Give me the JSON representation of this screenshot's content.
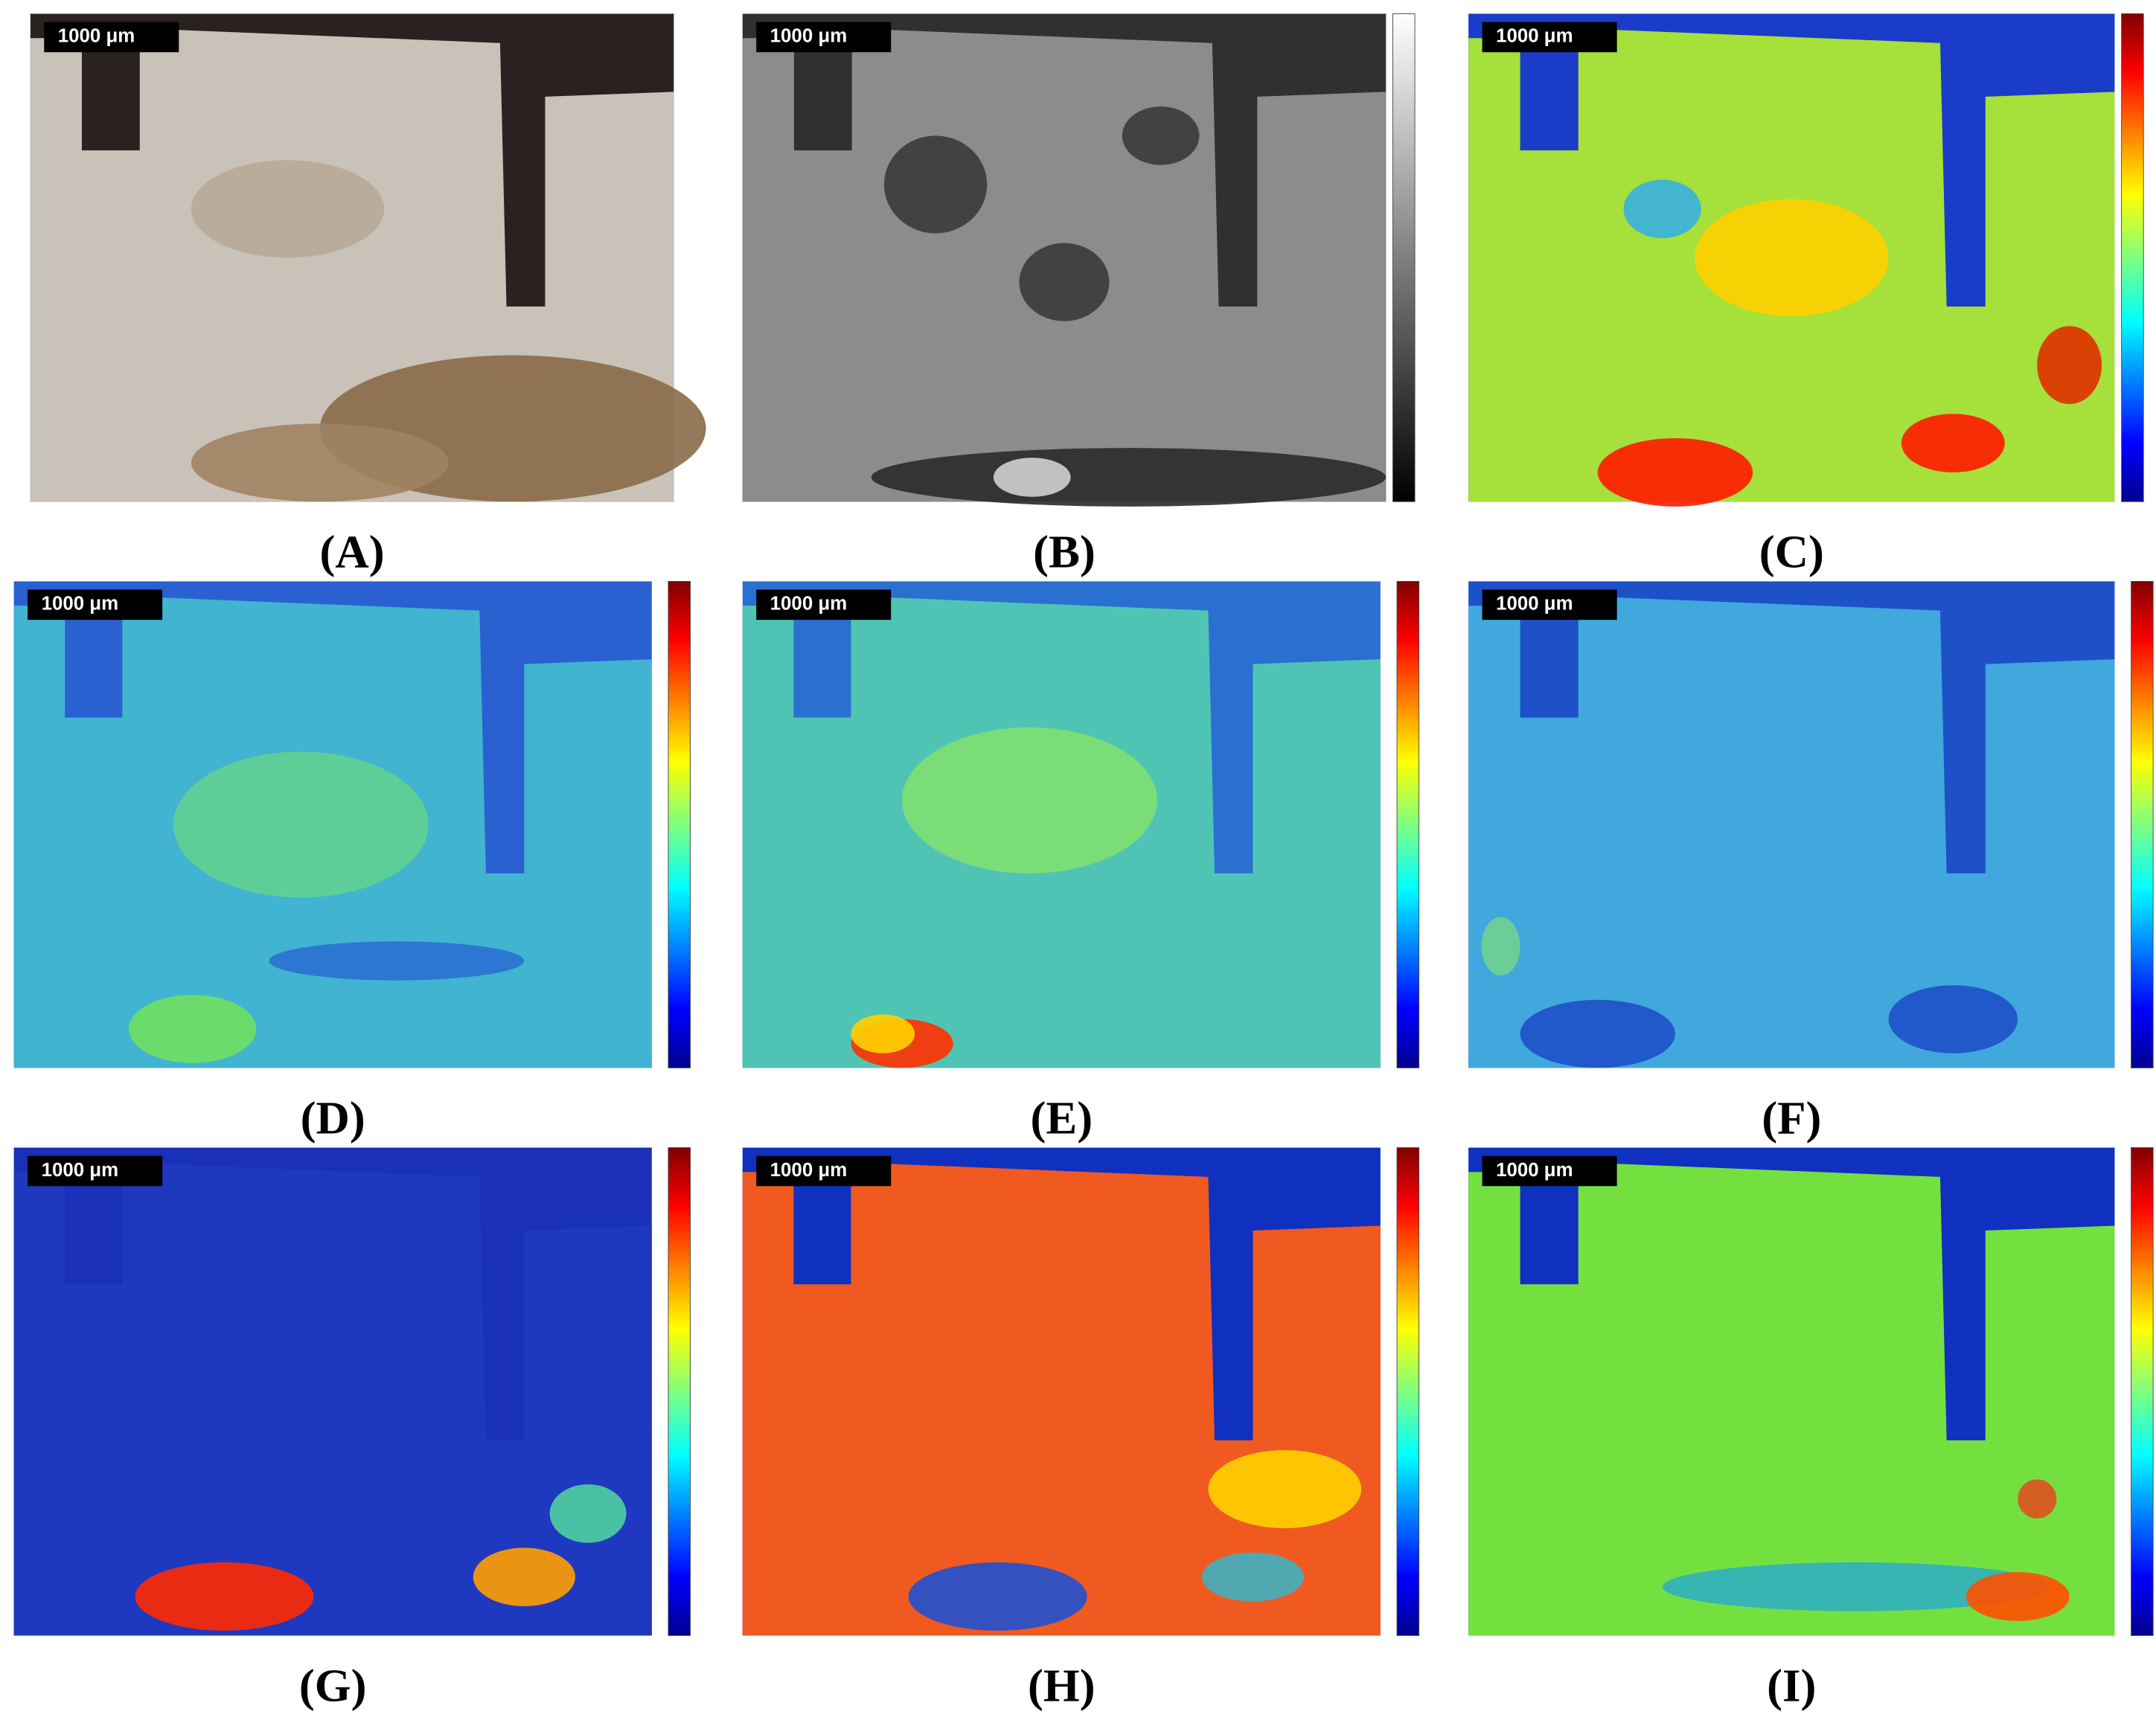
{
  "panels": [
    {
      "label": "(A)",
      "scale_bar": "1000 μm"
    },
    {
      "label": "(B)",
      "scale_bar": "1000 μm"
    },
    {
      "label": "(C)",
      "scale_bar": "1000 μm"
    },
    {
      "label": "(D)",
      "scale_bar": "1000 μm"
    },
    {
      "label": "(E)",
      "scale_bar": "1000 μm"
    },
    {
      "label": "(F)",
      "scale_bar": "1000 μm"
    },
    {
      "label": "(G)",
      "scale_bar": "1000 μm"
    },
    {
      "label": "(H)",
      "scale_bar": "1000 μm"
    },
    {
      "label": "(I)",
      "scale_bar": "1000 μm"
    }
  ]
}
